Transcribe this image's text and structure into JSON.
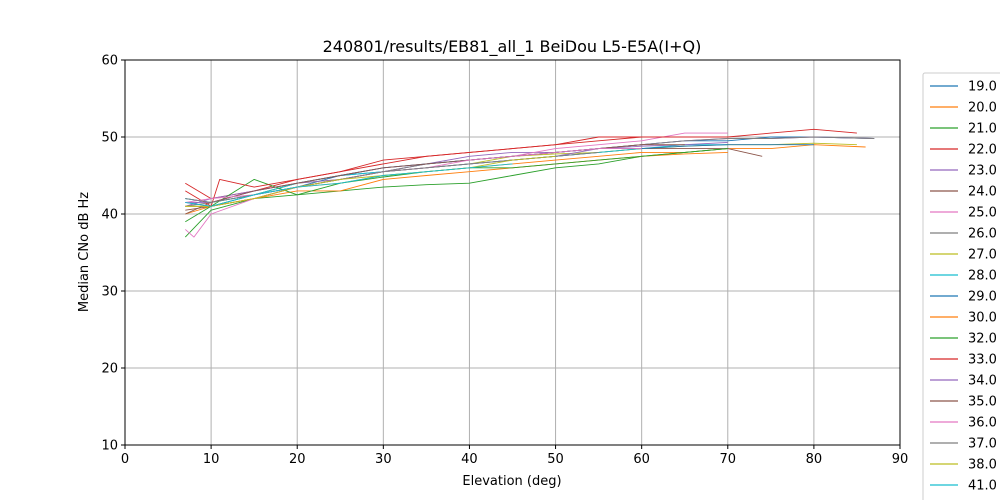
{
  "chart_data": {
    "type": "line",
    "title": "240801/results/EB81_all_1 BeiDou L5-E5A(I+Q)",
    "xlabel": "Elevation (deg)",
    "ylabel": "Median CNo dB Hz",
    "xlim": [
      0,
      90
    ],
    "ylim": [
      10,
      60
    ],
    "xticks": [
      "0",
      "10",
      "20",
      "30",
      "40",
      "50",
      "60",
      "70",
      "80",
      "90"
    ],
    "yticks": [
      "10",
      "20",
      "30",
      "40",
      "50",
      "60"
    ],
    "grid": true,
    "legend_position": "right (outside, clipped)",
    "series": [
      {
        "name": "19.0",
        "color": "#1f77b4",
        "x": [
          7,
          10,
          15,
          20,
          25,
          30,
          35,
          40,
          45,
          50,
          55,
          60,
          65,
          70,
          75,
          80,
          87
        ],
        "y": [
          42,
          41.5,
          42.5,
          44,
          45,
          45.5,
          46.5,
          47,
          47.5,
          48,
          48.5,
          49,
          49.5,
          49.5,
          50,
          50,
          49.8
        ]
      },
      {
        "name": "20.0",
        "color": "#ff7f0e",
        "x": [
          7,
          10,
          15,
          20,
          25,
          30,
          35,
          40,
          45,
          50,
          55,
          60,
          65,
          70,
          75,
          80,
          86
        ],
        "y": [
          41,
          41,
          42,
          43.5,
          44,
          45,
          45.5,
          46,
          46.5,
          47,
          47.5,
          48,
          48,
          48.5,
          48.5,
          49,
          48.7
        ]
      },
      {
        "name": "21.0",
        "color": "#2ca02c",
        "x": [
          7,
          10,
          15,
          20,
          25,
          30,
          35,
          40,
          45,
          50,
          55,
          60,
          65,
          70
        ],
        "y": [
          37,
          40.5,
          42,
          42.5,
          43,
          43.5,
          43.8,
          44,
          45,
          46,
          46.5,
          47.5,
          48,
          48.5
        ]
      },
      {
        "name": "22.0",
        "color": "#d62728",
        "x": [
          7,
          10,
          15,
          20,
          25,
          30,
          35,
          40,
          45,
          50,
          55,
          60,
          65,
          70,
          75,
          80,
          85
        ],
        "y": [
          44,
          42,
          43,
          44.5,
          45.5,
          47,
          47.5,
          48,
          48.5,
          49,
          50,
          50,
          50,
          50,
          50.5,
          51,
          50.5
        ]
      },
      {
        "name": "23.0",
        "color": "#9467bd",
        "x": [
          7,
          10,
          15,
          20,
          25,
          30,
          35,
          40,
          45,
          50,
          55,
          60,
          65,
          70,
          75,
          80,
          87
        ],
        "y": [
          41,
          42,
          43,
          44,
          45,
          46,
          46.5,
          47.5,
          48,
          48,
          48.5,
          49,
          49.5,
          49.8,
          49.8,
          50,
          49.8
        ]
      },
      {
        "name": "24.0",
        "color": "#8c564b",
        "x": [
          7,
          10,
          15,
          20,
          25,
          30,
          35,
          40,
          45,
          50,
          55,
          60,
          65,
          70,
          74
        ],
        "y": [
          40.5,
          41,
          42,
          43.5,
          44.5,
          45.5,
          46,
          46.5,
          47,
          47.5,
          48,
          48.5,
          48.5,
          48.5,
          47.5
        ]
      },
      {
        "name": "25.0",
        "color": "#e377c2",
        "x": [
          7,
          8,
          10,
          15,
          20,
          25,
          30,
          35,
          40,
          45,
          50,
          55,
          60,
          65,
          70
        ],
        "y": [
          38,
          37,
          40,
          42,
          43.5,
          44.5,
          45.5,
          46.5,
          47,
          47.5,
          48.5,
          49,
          49.5,
          50.5,
          50.5
        ]
      },
      {
        "name": "26.0",
        "color": "#7f7f7f",
        "x": [
          7,
          10,
          15,
          20,
          25,
          30,
          35,
          40,
          45,
          50,
          55,
          60,
          65,
          70,
          75,
          80,
          87
        ],
        "y": [
          41,
          41.5,
          42.5,
          43.5,
          44.5,
          45.5,
          46.5,
          47,
          47.5,
          48,
          48.5,
          49,
          49.5,
          49.8,
          49.8,
          50,
          49.8
        ]
      },
      {
        "name": "27.0",
        "color": "#bcbd22",
        "x": [
          7,
          10,
          15,
          20,
          25,
          30,
          35,
          40,
          45,
          50,
          55,
          60,
          65,
          70,
          75,
          80,
          85
        ],
        "y": [
          41,
          41,
          42.5,
          44,
          44.5,
          45.5,
          46,
          46.5,
          47.5,
          47.8,
          48,
          48.5,
          48.8,
          49,
          49,
          49.2,
          49
        ]
      },
      {
        "name": "28.0",
        "color": "#17becf",
        "x": [
          7,
          10,
          15,
          20,
          25,
          30,
          35,
          40,
          45,
          50,
          55,
          60,
          65,
          70
        ],
        "y": [
          42,
          41.5,
          42.5,
          44,
          45,
          45.5,
          46,
          46.5,
          47,
          47.5,
          48,
          48.5,
          49,
          49
        ]
      },
      {
        "name": "29.0",
        "color": "#1f77b4",
        "x": [
          7,
          10,
          15,
          20,
          25,
          30,
          35,
          40,
          45,
          50,
          55,
          60,
          65,
          70,
          75,
          80
        ],
        "y": [
          41.5,
          41,
          42.5,
          43.5,
          45,
          46,
          46.5,
          47,
          47.5,
          48,
          48.5,
          48.5,
          48.8,
          49,
          49,
          49
        ]
      },
      {
        "name": "30.0",
        "color": "#ff7f0e",
        "x": [
          7,
          10,
          15,
          20,
          25,
          30,
          35,
          40,
          45,
          50,
          55,
          60,
          65,
          70
        ],
        "y": [
          40,
          41,
          42,
          43,
          43,
          44.5,
          45,
          45.5,
          46,
          46.5,
          47,
          47.5,
          47.8,
          48
        ]
      },
      {
        "name": "32.0",
        "color": "#2ca02c",
        "x": [
          7,
          10,
          15,
          20,
          25,
          30,
          35,
          40,
          45,
          50,
          55,
          60,
          65,
          70
        ],
        "y": [
          39,
          41,
          44.5,
          42.5,
          44,
          44.8,
          45.5,
          46,
          46,
          46.5,
          47,
          47.5,
          48,
          48.5
        ]
      },
      {
        "name": "33.0",
        "color": "#d62728",
        "x": [
          7,
          10,
          11,
          15,
          20,
          25,
          30,
          35,
          40,
          45,
          50,
          55,
          60,
          65,
          70
        ],
        "y": [
          43,
          41,
          44.5,
          43.5,
          44.5,
          45.5,
          46.5,
          47.5,
          48,
          48.5,
          49,
          49.5,
          50,
          50,
          50
        ]
      },
      {
        "name": "34.0",
        "color": "#9467bd",
        "x": [
          7,
          10,
          15,
          20,
          25,
          30,
          35,
          40,
          45,
          50,
          55,
          60,
          65,
          70
        ],
        "y": [
          41.5,
          41.5,
          43,
          44,
          44.5,
          45.5,
          46,
          46.5,
          47,
          47.5,
          48.5,
          48.8,
          49,
          49.3
        ]
      },
      {
        "name": "35.0",
        "color": "#8c564b",
        "x": [
          7,
          10,
          15,
          20,
          25,
          30,
          35,
          40,
          45,
          50,
          55,
          60,
          65
        ],
        "y": [
          40,
          41.5,
          43,
          44,
          45,
          46,
          46.5,
          47,
          47.5,
          48,
          48.5,
          49,
          49
        ]
      },
      {
        "name": "36.0",
        "color": "#e377c2",
        "x": [
          7,
          10,
          15,
          20,
          25,
          30,
          35,
          40,
          45,
          50,
          55,
          60
        ],
        "y": [
          41.5,
          42,
          42.5,
          43.5,
          44.5,
          45.5,
          46,
          47,
          47.5,
          48,
          48.5,
          48.5
        ]
      },
      {
        "name": "37.0",
        "color": "#7f7f7f",
        "x": [
          7,
          10,
          15,
          20,
          25,
          30,
          35,
          40,
          45,
          50,
          55
        ],
        "y": [
          42,
          41.5,
          42.5,
          43.5,
          44.5,
          45.5,
          46,
          46.5,
          47,
          47.5,
          48
        ]
      },
      {
        "name": "38.0",
        "color": "#bcbd22",
        "x": [
          7,
          10,
          15,
          20,
          25,
          30,
          35,
          40,
          45,
          50
        ],
        "y": [
          41,
          41,
          42,
          43.5,
          44.5,
          45,
          45.5,
          46,
          47,
          47.5
        ]
      },
      {
        "name": "41.0",
        "color": "#17becf",
        "x": [
          7,
          10,
          15,
          20,
          25,
          30,
          35,
          40,
          45
        ],
        "y": [
          41.5,
          41,
          42.5,
          43.5,
          44,
          45,
          45.5,
          46,
          46.5
        ]
      }
    ]
  }
}
